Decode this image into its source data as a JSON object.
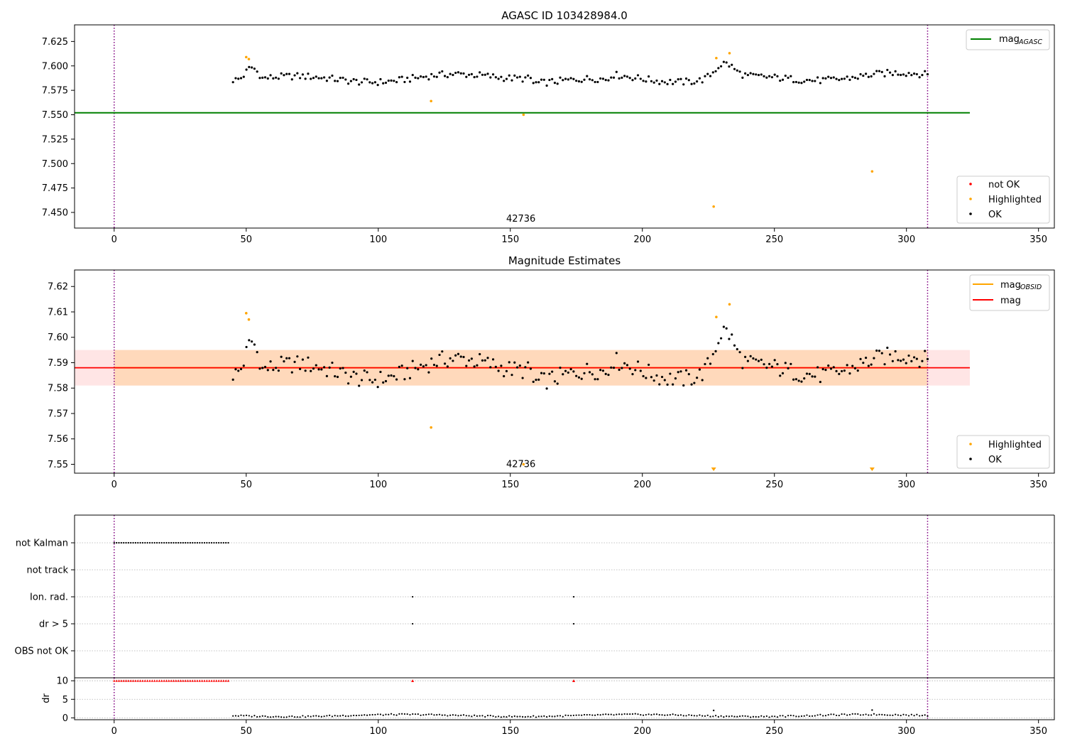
{
  "figure": {
    "title": "AGASC ID 103428984.0"
  },
  "chart_data": [
    {
      "type": "scatter",
      "name": "agasc-panel",
      "xlim": [
        -15,
        356
      ],
      "ylim": [
        7.434,
        7.642
      ],
      "xticks": [
        0,
        50,
        100,
        150,
        200,
        250,
        300,
        350
      ],
      "yticks": [
        7.45,
        7.475,
        7.5,
        7.525,
        7.55,
        7.575,
        7.6,
        7.625
      ],
      "ytick_labels": [
        "7.450",
        "7.475",
        "7.500",
        "7.525",
        "7.550",
        "7.575",
        "7.600",
        "7.625"
      ],
      "vlines": [
        0,
        308
      ],
      "hline": {
        "y": 7.552,
        "x0": -15,
        "x1": 324,
        "color": "#008000"
      },
      "annotation": {
        "text": "42736",
        "x": 154,
        "y": 7.4375
      },
      "legend_lines": [
        {
          "label": "mag",
          "sub": "AGASC",
          "color": "#008000"
        }
      ],
      "legend_points": [
        {
          "label": "not OK",
          "color": "#ff0000"
        },
        {
          "label": "Highlighted",
          "color": "#ffa500"
        },
        {
          "label": "OK",
          "color": "#000000"
        }
      ],
      "highlighted": [
        [
          50,
          7.609
        ],
        [
          51,
          7.607
        ],
        [
          120,
          7.564
        ],
        [
          155,
          7.55
        ],
        [
          228,
          7.608
        ],
        [
          227,
          7.456
        ],
        [
          233,
          7.613
        ],
        [
          287,
          7.492
        ]
      ]
    },
    {
      "type": "scatter",
      "name": "estimates-panel",
      "title": "Magnitude Estimates",
      "xlim": [
        -15,
        356
      ],
      "ylim": [
        7.5465,
        7.6265
      ],
      "xticks": [
        0,
        50,
        100,
        150,
        200,
        250,
        300,
        350
      ],
      "yticks": [
        7.55,
        7.56,
        7.57,
        7.58,
        7.59,
        7.6,
        7.61,
        7.62
      ],
      "ytick_labels": [
        "7.55",
        "7.56",
        "7.57",
        "7.58",
        "7.59",
        "7.60",
        "7.61",
        "7.62"
      ],
      "vlines": [
        0,
        308
      ],
      "mag": {
        "value": 7.588,
        "band": [
          7.581,
          7.595
        ],
        "color": "#ff0000"
      },
      "mag_obsid": {
        "value": 7.588,
        "band": [
          7.581,
          7.595
        ],
        "color": "#ffa500"
      },
      "annotation": {
        "text": "42736",
        "x": 154,
        "y": 7.5495
      },
      "legend_lines": [
        {
          "label": "mag",
          "sub": "OBSID",
          "color": "#ffa500"
        },
        {
          "label": "mag",
          "sub": "",
          "color": "#ff0000"
        }
      ],
      "legend_points": [
        {
          "label": "Highlighted",
          "color": "#ffa500"
        },
        {
          "label": "OK",
          "color": "#000000"
        }
      ],
      "highlighted": [
        [
          50,
          7.6095
        ],
        [
          51,
          7.607
        ],
        [
          120,
          7.5645
        ],
        [
          155,
          7.55
        ],
        [
          228,
          7.608
        ],
        [
          233,
          7.613
        ]
      ],
      "below_range_markers": [
        227,
        287
      ]
    },
    {
      "type": "scatter",
      "name": "flags-panel",
      "xlim": [
        -15,
        356
      ],
      "xticks": [
        0,
        50,
        100,
        150,
        200,
        250,
        300,
        350
      ],
      "categories": [
        "not Kalman",
        "not track",
        "Ion. rad.",
        "dr > 5",
        "OBS not OK"
      ],
      "vlines": [
        0,
        308
      ],
      "flags": {
        "not Kalman": {
          "from": 0,
          "to": 44
        },
        "Ion. rad.": [
          113,
          174
        ],
        "dr > 5": [
          113,
          174
        ]
      }
    },
    {
      "type": "scatter",
      "name": "dr-panel",
      "ylabel": "dr",
      "xlim": [
        -15,
        356
      ],
      "ylim": [
        -0.5,
        10.8
      ],
      "xticks": [
        0,
        50,
        100,
        150,
        200,
        250,
        300,
        350
      ],
      "yticks": [
        0,
        5,
        10
      ],
      "ytick_labels": [
        "0",
        "5",
        "10"
      ],
      "vlines": [
        0,
        308
      ],
      "clipped_value": 10,
      "clipped_points": {
        "from": 0,
        "to": 44,
        "extra": [
          113,
          174
        ]
      },
      "spikes": [
        [
          227,
          2.0
        ],
        [
          287,
          2.1
        ]
      ]
    }
  ]
}
